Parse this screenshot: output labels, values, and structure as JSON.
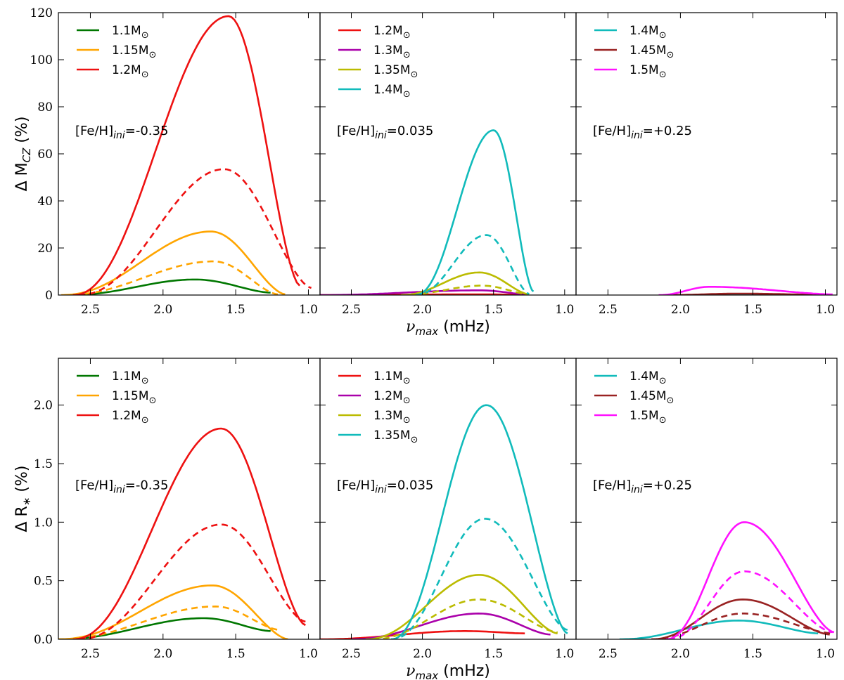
{
  "chart_data": [
    {
      "type": "line",
      "row": "top",
      "ylabel_prefix": "Δ M",
      "ylabel_sub": "CZ",
      "ylabel_suffix": " (%)",
      "xlabel_prefix": "ν",
      "xlabel_sub": "max",
      "xlabel_suffix": " (mHz)",
      "ylim": [
        0,
        120
      ],
      "yticks": [
        "0",
        "20",
        "40",
        "60",
        "80",
        "100",
        "120"
      ],
      "xlim": [
        2.72,
        0.92
      ],
      "xticks": [
        "2.5",
        "2.0",
        "1.5",
        "1.0"
      ],
      "panels": [
        {
          "annotation_prefix": "[Fe/H]",
          "annotation_sub": "ini",
          "annotation_suffix": "=-0.35",
          "series": [
            {
              "name": "1.1M",
              "color": "#007700",
              "style": "solid",
              "in_legend": true,
              "peak_x": 1.78,
              "peak_y": 6.6,
              "x_start": 2.65,
              "x_end": 1.26,
              "y_end": 1.0
            },
            {
              "name": "1.15M",
              "color": "#ffa500",
              "style": "solid",
              "in_legend": true,
              "peak_x": 1.67,
              "peak_y": 27.0,
              "x_start": 2.7,
              "x_end": 1.16,
              "y_end": 0.3
            },
            {
              "name": "1.15M dashed",
              "color": "#ffa500",
              "style": "dashed",
              "in_legend": false,
              "peak_x": 1.65,
              "peak_y": 14.3,
              "x_start": 2.68,
              "x_end": 1.21,
              "y_end": 0.3
            },
            {
              "name": "1.2M",
              "color": "#ee1111",
              "style": "solid",
              "in_legend": true,
              "peak_x": 1.55,
              "peak_y": 118.5,
              "x_start": 2.62,
              "x_end": 1.06,
              "y_end": 4.0
            },
            {
              "name": "1.2M dashed",
              "color": "#ee1111",
              "style": "dashed",
              "in_legend": false,
              "peak_x": 1.58,
              "peak_y": 53.5,
              "x_start": 2.58,
              "x_end": 0.98,
              "y_end": 3.0
            }
          ]
        },
        {
          "annotation_prefix": "[Fe/H]",
          "annotation_sub": "ini",
          "annotation_suffix": "=0.035",
          "series": [
            {
              "name": "1.2M",
              "color": "#ee1111",
              "style": "solid",
              "in_legend": true,
              "peak_x": 1.6,
              "peak_y": 0.3,
              "x_start": 2.72,
              "x_end": 1.25,
              "y_end": 0.1
            },
            {
              "name": "1.3M",
              "color": "#aa00aa",
              "style": "solid",
              "in_legend": true,
              "peak_x": 1.6,
              "peak_y": 2.0,
              "x_start": 2.72,
              "x_end": 1.25,
              "y_end": 0.2
            },
            {
              "name": "1.35M",
              "color": "#bbbb00",
              "style": "solid",
              "in_legend": true,
              "peak_x": 1.6,
              "peak_y": 9.6,
              "x_start": 2.15,
              "x_end": 1.25,
              "y_end": 0.3
            },
            {
              "name": "1.35M dashed",
              "color": "#bbbb00",
              "style": "dashed",
              "in_legend": false,
              "peak_x": 1.58,
              "peak_y": 4.0,
              "x_start": 2.15,
              "x_end": 1.25,
              "y_end": 0.3
            },
            {
              "name": "1.4M",
              "color": "#11bbbb",
              "style": "solid",
              "in_legend": true,
              "peak_x": 1.5,
              "peak_y": 70.0,
              "x_start": 2.05,
              "x_end": 1.22,
              "y_end": 1.5
            },
            {
              "name": "1.4M dashed",
              "color": "#11bbbb",
              "style": "dashed",
              "in_legend": false,
              "peak_x": 1.55,
              "peak_y": 25.5,
              "x_start": 2.05,
              "x_end": 1.25,
              "y_end": 0.5
            }
          ]
        },
        {
          "annotation_prefix": "[Fe/H]",
          "annotation_sub": "ini",
          "annotation_suffix": "=+0.25",
          "series": [
            {
              "name": "1.4M",
              "color": "#11bbbb",
              "style": "solid",
              "in_legend": true,
              "peak_x": 1.6,
              "peak_y": 0.2,
              "x_start": 2.1,
              "x_end": 1.0,
              "y_end": 0.0
            },
            {
              "name": "1.45M",
              "color": "#992222",
              "style": "solid",
              "in_legend": true,
              "peak_x": 1.6,
              "peak_y": 0.6,
              "x_start": 2.1,
              "x_end": 1.0,
              "y_end": 0.1
            },
            {
              "name": "1.5M",
              "color": "#ff11ff",
              "style": "solid",
              "in_legend": true,
              "peak_x": 1.8,
              "peak_y": 3.5,
              "x_start": 2.15,
              "x_end": 0.95,
              "y_end": 0.3
            }
          ]
        }
      ]
    },
    {
      "type": "line",
      "row": "bottom",
      "ylabel_prefix": "Δ R",
      "ylabel_sub": "∗",
      "ylabel_suffix": " (%)",
      "xlabel_prefix": "ν",
      "xlabel_sub": "max",
      "xlabel_suffix": " (mHz)",
      "ylim": [
        0,
        2.4
      ],
      "yticks": [
        "0.0",
        "0.5",
        "1.0",
        "1.5",
        "2.0"
      ],
      "ytick_values": [
        0,
        0.5,
        1.0,
        1.5,
        2.0
      ],
      "xlim": [
        2.72,
        0.92
      ],
      "xticks": [
        "2.5",
        "2.0",
        "1.5",
        "1.0"
      ],
      "panels": [
        {
          "annotation_prefix": "[Fe/H]",
          "annotation_sub": "ini",
          "annotation_suffix": "=-0.35",
          "series": [
            {
              "name": "1.1M",
              "color": "#007700",
              "style": "solid",
              "in_legend": true,
              "peak_x": 1.72,
              "peak_y": 0.18,
              "x_start": 2.72,
              "x_end": 1.26,
              "y_end": 0.07
            },
            {
              "name": "1.15M",
              "color": "#ffa500",
              "style": "solid",
              "in_legend": true,
              "peak_x": 1.66,
              "peak_y": 0.46,
              "x_start": 2.72,
              "x_end": 1.14,
              "y_end": 0.0
            },
            {
              "name": "1.15M dashed",
              "color": "#ffa500",
              "style": "dashed",
              "in_legend": false,
              "peak_x": 1.64,
              "peak_y": 0.28,
              "x_start": 2.72,
              "x_end": 1.2,
              "y_end": 0.08
            },
            {
              "name": "1.2M",
              "color": "#ee1111",
              "style": "solid",
              "in_legend": true,
              "peak_x": 1.6,
              "peak_y": 1.8,
              "x_start": 2.62,
              "x_end": 1.02,
              "y_end": 0.12
            },
            {
              "name": "1.2M dashed",
              "color": "#ee1111",
              "style": "dashed",
              "in_legend": false,
              "peak_x": 1.6,
              "peak_y": 0.98,
              "x_start": 2.58,
              "x_end": 1.02,
              "y_end": 0.15
            }
          ]
        },
        {
          "annotation_prefix": "[Fe/H]",
          "annotation_sub": "ini",
          "annotation_suffix": "=0.035",
          "series": [
            {
              "name": "1.1M",
              "color": "#ee1111",
              "style": "solid",
              "in_legend": true,
              "peak_x": 1.7,
              "peak_y": 0.07,
              "x_start": 2.72,
              "x_end": 1.28,
              "y_end": 0.05
            },
            {
              "name": "1.2M",
              "color": "#aa00aa",
              "style": "solid",
              "in_legend": true,
              "peak_x": 1.6,
              "peak_y": 0.22,
              "x_start": 2.5,
              "x_end": 1.1,
              "y_end": 0.04
            },
            {
              "name": "1.3M",
              "color": "#bbbb00",
              "style": "solid",
              "in_legend": true,
              "peak_x": 1.6,
              "peak_y": 0.55,
              "x_start": 2.4,
              "x_end": 1.05,
              "y_end": 0.05
            },
            {
              "name": "1.3M dashed",
              "color": "#bbbb00",
              "style": "dashed",
              "in_legend": false,
              "peak_x": 1.6,
              "peak_y": 0.34,
              "x_start": 2.35,
              "x_end": 1.05,
              "y_end": 0.06
            },
            {
              "name": "1.35M",
              "color": "#11bbbb",
              "style": "solid",
              "in_legend": true,
              "peak_x": 1.55,
              "peak_y": 2.0,
              "x_start": 2.22,
              "x_end": 0.98,
              "y_end": 0.05
            },
            {
              "name": "1.35M dashed",
              "color": "#11bbbb",
              "style": "dashed",
              "in_legend": false,
              "peak_x": 1.56,
              "peak_y": 1.03,
              "x_start": 2.22,
              "x_end": 0.98,
              "y_end": 0.08
            }
          ]
        },
        {
          "annotation_prefix": "[Fe/H]",
          "annotation_sub": "ini",
          "annotation_suffix": "=+0.25",
          "series": [
            {
              "name": "1.4M",
              "color": "#11bbbb",
              "style": "solid",
              "in_legend": true,
              "peak_x": 1.6,
              "peak_y": 0.16,
              "x_start": 2.42,
              "x_end": 1.05,
              "y_end": 0.05
            },
            {
              "name": "1.45M",
              "color": "#992222",
              "style": "solid",
              "in_legend": true,
              "peak_x": 1.57,
              "peak_y": 0.34,
              "x_start": 2.2,
              "x_end": 0.97,
              "y_end": 0.04
            },
            {
              "name": "1.45M dashed",
              "color": "#992222",
              "style": "dashed",
              "in_legend": false,
              "peak_x": 1.57,
              "peak_y": 0.22,
              "x_start": 2.2,
              "x_end": 0.95,
              "y_end": 0.05
            },
            {
              "name": "1.5M",
              "color": "#ff11ff",
              "style": "solid",
              "in_legend": true,
              "peak_x": 1.56,
              "peak_y": 1.0,
              "x_start": 2.1,
              "x_end": 0.94,
              "y_end": 0.06
            },
            {
              "name": "1.5M dashed",
              "color": "#ff11ff",
              "style": "dashed",
              "in_legend": false,
              "peak_x": 1.56,
              "peak_y": 0.58,
              "x_start": 2.08,
              "x_end": 0.95,
              "y_end": 0.06
            }
          ]
        }
      ]
    }
  ],
  "sun_symbol": "⊙"
}
